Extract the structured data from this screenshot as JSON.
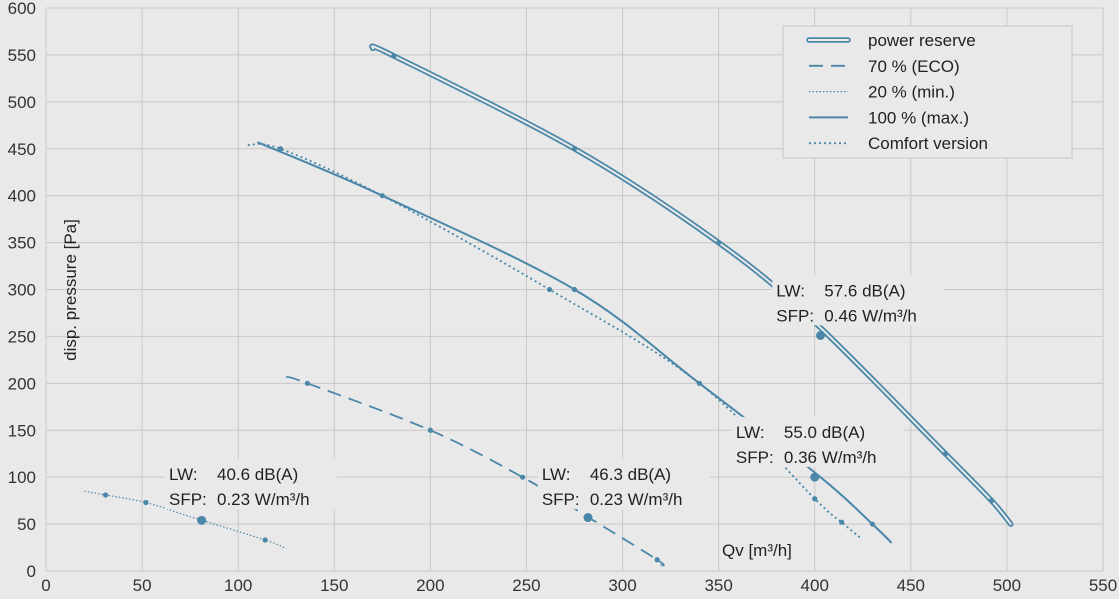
{
  "chart_data": {
    "type": "line",
    "xlabel": "Qv [m³/h]",
    "ylabel": "disp. pressure [Pa]",
    "xlim": [
      0,
      550
    ],
    "ylim": [
      0,
      600
    ],
    "xticks": [
      0,
      50,
      100,
      150,
      200,
      250,
      300,
      350,
      400,
      450,
      500,
      550
    ],
    "yticks": [
      0,
      50,
      100,
      150,
      200,
      250,
      300,
      350,
      400,
      450,
      500,
      550,
      600
    ],
    "grid": true,
    "legend_position": "top-right",
    "colors": {
      "line": "#4a87a8",
      "grid": "#c8c8c8",
      "background": "#e9e9e9"
    },
    "legend": [
      {
        "label": "power reserve",
        "style": "double"
      },
      {
        "label": "70 % (ECO)",
        "style": "dashed"
      },
      {
        "label": "20 % (min.)",
        "style": "fine-dotted"
      },
      {
        "label": "100 % (max.)",
        "style": "solid"
      },
      {
        "label": "Comfort version",
        "style": "dotted"
      }
    ],
    "series": [
      {
        "style": "double",
        "x": [
          170,
          181,
          275,
          350,
          400,
          468,
          492,
          502
        ],
        "y": [
          557,
          549,
          450,
          350,
          265,
          125,
          75,
          50
        ],
        "markers": [
          181,
          275,
          350,
          468,
          492
        ]
      },
      {
        "style": "solid",
        "x": [
          110,
          175,
          275,
          340,
          403,
          430,
          440
        ],
        "y": [
          457,
          400,
          300,
          200,
          100,
          50,
          30
        ],
        "markers": [
          175,
          275,
          340,
          430
        ]
      },
      {
        "style": "dotted",
        "x": [
          105,
          122,
          175,
          262,
          340,
          400,
          414,
          424
        ],
        "y": [
          454,
          450,
          400,
          300,
          200,
          77,
          52,
          35
        ],
        "markers": [
          122,
          262,
          400,
          414
        ]
      },
      {
        "style": "dashed",
        "x": [
          125,
          136,
          200,
          248,
          280,
          318,
          320
        ],
        "y": [
          207,
          200,
          150,
          100,
          60,
          12,
          6
        ],
        "markers": [
          136,
          200,
          248,
          318
        ]
      },
      {
        "style": "fine-dotted",
        "x": [
          20,
          31,
          52,
          75,
          114,
          125
        ],
        "y": [
          85,
          81,
          73,
          58,
          33,
          24
        ],
        "markers": [
          31,
          52,
          114
        ]
      }
    ],
    "operating_points": [
      {
        "x": 81,
        "y": 54
      },
      {
        "x": 282,
        "y": 57
      },
      {
        "x": 400,
        "y": 100
      },
      {
        "x": 403,
        "y": 251
      }
    ],
    "annotations": [
      {
        "lw_label": "LW:",
        "lw": "40.6 dB(A)",
        "sfp_label": "SFP:",
        "sfp": "0.23 W/m³/h",
        "x": 64,
        "y": 100
      },
      {
        "lw_label": "LW:",
        "lw": "46.3 dB(A)",
        "sfp_label": "SFP:",
        "sfp": "0.23 W/m³/h",
        "x": 258,
        "y": 100
      },
      {
        "lw_label": "LW:",
        "lw": "55.0 dB(A)",
        "sfp_label": "SFP:",
        "sfp": "0.36 W/m³/h",
        "x": 359,
        "y": 145
      },
      {
        "lw_label": "LW:",
        "lw": "57.6 dB(A)",
        "sfp_label": "SFP:",
        "sfp": "0.46 W/m³/h",
        "x": 380,
        "y": 296
      }
    ]
  }
}
